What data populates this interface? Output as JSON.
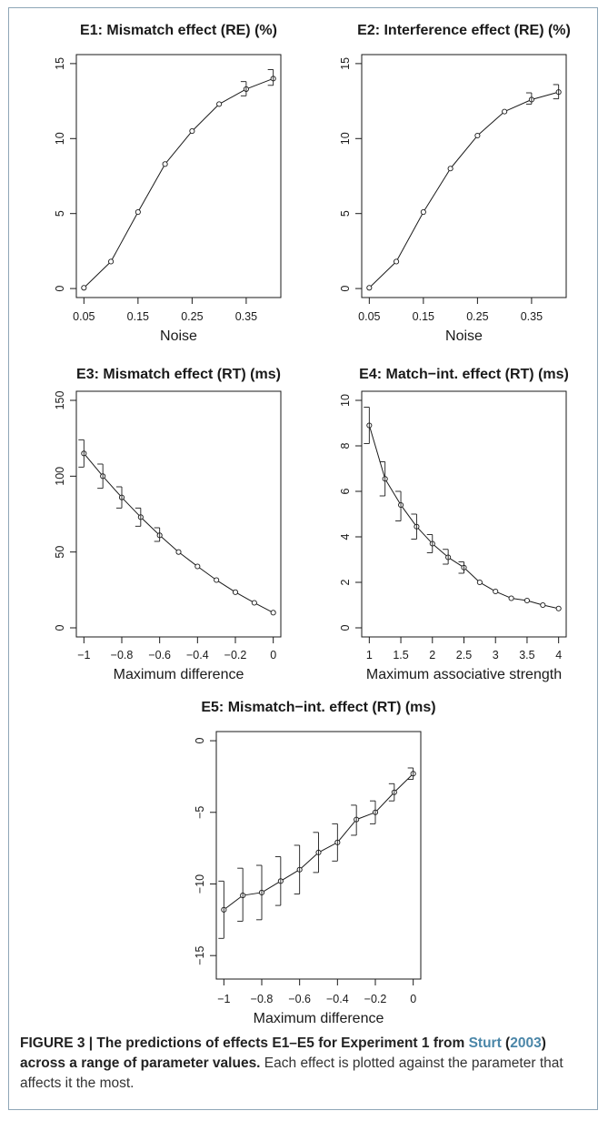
{
  "chart_data": [
    {
      "id": "E1",
      "type": "line",
      "title": "E1: Mismatch effect (RE) (%)",
      "xlabel": "Noise",
      "ylabel": "",
      "x": [
        0.05,
        0.1,
        0.15,
        0.2,
        0.25,
        0.3,
        0.35,
        0.4
      ],
      "xticks": [
        "0.05",
        "0.15",
        "0.25",
        "0.35"
      ],
      "xtick_values": [
        0.05,
        0.15,
        0.25,
        0.35
      ],
      "yticks": [
        "0",
        "5",
        "10",
        "15"
      ],
      "ytick_values": [
        0,
        5,
        10,
        15
      ],
      "xlim": [
        0.05,
        0.4
      ],
      "ylim": [
        0,
        15
      ],
      "series": [
        {
          "values": [
            0.05,
            1.8,
            5.1,
            8.3,
            10.5,
            12.3,
            13.3,
            14.0
          ],
          "err_low": [
            null,
            null,
            null,
            null,
            null,
            null,
            12.85,
            13.55
          ],
          "err_high": [
            null,
            null,
            null,
            null,
            null,
            null,
            13.8,
            14.6
          ]
        }
      ],
      "grid": false
    },
    {
      "id": "E2",
      "type": "line",
      "title": "E2: Interference effect (RE) (%)",
      "xlabel": "Noise",
      "ylabel": "",
      "x": [
        0.05,
        0.1,
        0.15,
        0.2,
        0.25,
        0.3,
        0.35,
        0.4
      ],
      "xticks": [
        "0.05",
        "0.15",
        "0.25",
        "0.35"
      ],
      "xtick_values": [
        0.05,
        0.15,
        0.25,
        0.35
      ],
      "yticks": [
        "0",
        "5",
        "10",
        "15"
      ],
      "ytick_values": [
        0,
        5,
        10,
        15
      ],
      "xlim": [
        0.05,
        0.4
      ],
      "ylim": [
        0,
        15
      ],
      "series": [
        {
          "values": [
            0.05,
            1.8,
            5.1,
            8.0,
            10.2,
            11.8,
            12.6,
            13.1
          ],
          "err_low": [
            null,
            null,
            null,
            null,
            null,
            null,
            12.3,
            12.65
          ],
          "err_high": [
            null,
            null,
            null,
            null,
            null,
            null,
            13.05,
            13.6
          ]
        }
      ],
      "grid": false
    },
    {
      "id": "E3",
      "type": "line",
      "title": "E3: Mismatch effect (RT) (ms)",
      "xlabel": "Maximum difference",
      "ylabel": "",
      "x": [
        -1,
        -0.9,
        -0.8,
        -0.7,
        -0.6,
        -0.5,
        -0.4,
        -0.3,
        -0.2,
        -0.1,
        0
      ],
      "xticks": [
        "−1",
        "−0.8",
        "−0.6",
        "−0.4",
        "−0.2",
        "0"
      ],
      "xtick_values": [
        -1,
        -0.8,
        -0.6,
        -0.4,
        -0.2,
        0
      ],
      "yticks": [
        "0",
        "50",
        "100",
        "150"
      ],
      "ytick_values": [
        0,
        50,
        100,
        150
      ],
      "xlim": [
        -1,
        0
      ],
      "ylim": [
        0,
        150
      ],
      "series": [
        {
          "values": [
            115,
            100,
            86,
            73,
            61,
            50,
            40.5,
            31.5,
            23.5,
            16.5,
            10
          ],
          "err_low": [
            106,
            92,
            79,
            67,
            57,
            null,
            null,
            null,
            null,
            null,
            null
          ],
          "err_high": [
            124,
            108,
            93,
            79,
            66,
            null,
            null,
            null,
            null,
            null,
            null
          ]
        }
      ],
      "grid": false
    },
    {
      "id": "E4",
      "type": "line",
      "title": "E4: Match−int. effect (RT) (ms)",
      "xlabel": "Maximum associative strength",
      "ylabel": "",
      "x": [
        1,
        1.25,
        1.5,
        1.75,
        2,
        2.25,
        2.5,
        2.75,
        3,
        3.25,
        3.5,
        3.75,
        4
      ],
      "xticks": [
        "1",
        "1.5",
        "2",
        "2.5",
        "3",
        "3.5",
        "4"
      ],
      "xtick_values": [
        1,
        1.5,
        2,
        2.5,
        3,
        3.5,
        4
      ],
      "yticks": [
        "0",
        "2",
        "4",
        "6",
        "8",
        "10"
      ],
      "ytick_values": [
        0,
        2,
        4,
        6,
        8,
        10
      ],
      "xlim": [
        1,
        4
      ],
      "ylim": [
        0,
        10
      ],
      "series": [
        {
          "values": [
            8.9,
            6.55,
            5.4,
            4.45,
            3.7,
            3.1,
            2.65,
            2.0,
            1.6,
            1.3,
            1.2,
            1.0,
            0.85
          ],
          "err_low": [
            8.1,
            5.8,
            4.7,
            3.9,
            3.3,
            2.8,
            2.4,
            null,
            null,
            null,
            null,
            null,
            null
          ],
          "err_high": [
            9.7,
            7.3,
            6.0,
            5.0,
            4.1,
            3.45,
            2.9,
            null,
            null,
            null,
            null,
            null,
            null
          ]
        }
      ],
      "grid": false
    },
    {
      "id": "E5",
      "type": "line",
      "title": "E5: Mismatch−int. effect (RT) (ms)",
      "xlabel": "Maximum difference",
      "ylabel": "",
      "x": [
        -1,
        -0.9,
        -0.8,
        -0.7,
        -0.6,
        -0.5,
        -0.4,
        -0.3,
        -0.2,
        -0.1,
        0
      ],
      "xticks": [
        "−1",
        "−0.8",
        "−0.6",
        "−0.4",
        "−0.2",
        "0"
      ],
      "xtick_values": [
        -1,
        -0.8,
        -0.6,
        -0.4,
        -0.2,
        0
      ],
      "yticks": [
        "0",
        "−5",
        "−10",
        "−15"
      ],
      "ytick_values": [
        0,
        -5,
        -10,
        -15
      ],
      "xlim": [
        -1,
        0
      ],
      "ylim": [
        -16,
        0
      ],
      "series": [
        {
          "values": [
            -11.8,
            -10.8,
            -10.6,
            -9.8,
            -9.0,
            -7.8,
            -7.1,
            -5.5,
            -5.0,
            -3.6,
            -2.3
          ],
          "err_low": [
            -13.8,
            -12.6,
            -12.5,
            -11.5,
            -10.7,
            -9.2,
            -8.4,
            -6.6,
            -5.8,
            -4.2,
            -2.7
          ],
          "err_high": [
            -9.8,
            -8.9,
            -8.7,
            -8.1,
            -7.3,
            -6.4,
            -5.8,
            -4.5,
            -4.2,
            -3.0,
            -1.9
          ]
        }
      ],
      "grid": false
    }
  ],
  "caption": {
    "figure_label": "FIGURE 3 | The predictions of effects E1–E5 for Experiment 1 from ",
    "ref_author": "Sturt",
    "ref_year_open": " (",
    "ref_year": "2003",
    "ref_year_close": ")",
    "bold_rest": " across a range of parameter values.",
    "normal_text": " Each effect is plotted against the parameter that affects it the most."
  },
  "colors": {
    "frame": "#8ea6b7",
    "link": "#4a86a8",
    "ink": "#1a1a1a"
  }
}
